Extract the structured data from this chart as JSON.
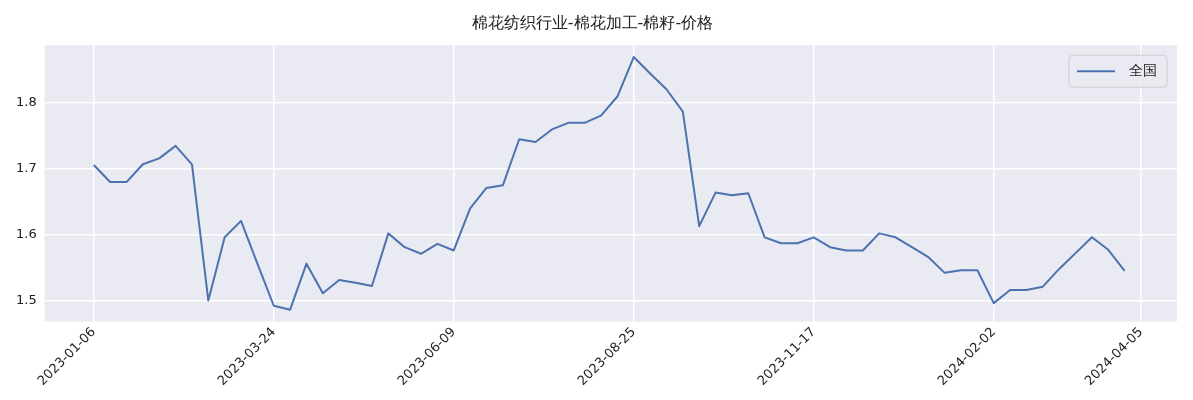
{
  "chart_data": {
    "type": "line",
    "title": "棉花纺织行业-棉花加工-棉籽-价格",
    "categories": [
      "2023-01-06",
      null,
      null,
      null,
      null,
      null,
      null,
      null,
      null,
      null,
      null,
      "2023-03-24",
      null,
      null,
      null,
      null,
      null,
      null,
      null,
      null,
      null,
      null,
      "2023-06-09",
      null,
      null,
      null,
      null,
      null,
      null,
      null,
      null,
      null,
      null,
      "2023-08-25",
      null,
      null,
      null,
      null,
      null,
      null,
      null,
      null,
      null,
      null,
      "2023-11-17",
      null,
      null,
      null,
      null,
      null,
      null,
      null,
      null,
      null,
      null,
      "2024-02-02",
      null,
      null,
      null,
      null,
      null,
      null,
      null,
      null,
      "2024-04-05"
    ],
    "series": [
      {
        "name": "全国",
        "color": "#4c72b0",
        "values": [
          1.706,
          1.68,
          1.68,
          1.707,
          1.716,
          1.735,
          1.707,
          1.5,
          1.596,
          1.621,
          1.556,
          1.492,
          1.486,
          1.556,
          1.511,
          1.531,
          1.527,
          1.522,
          1.602,
          1.581,
          1.571,
          1.586,
          1.576,
          1.64,
          1.671,
          1.675,
          1.745,
          1.741,
          1.76,
          1.77,
          1.77,
          1.781,
          1.81,
          1.87,
          1.845,
          1.821,
          1.787,
          1.613,
          1.664,
          1.66,
          1.663,
          1.596,
          1.587,
          1.587,
          1.596,
          1.581,
          1.576,
          1.576,
          1.602,
          1.596,
          1.581,
          1.566,
          1.542,
          1.546,
          1.546,
          1.496,
          1.516,
          1.516,
          1.521,
          1.548,
          1.572,
          1.596,
          1.577,
          1.545,
          null
        ]
      }
    ],
    "ylim": [
      1.468,
      1.888
    ],
    "yticks": [
      1.5,
      1.6,
      1.7,
      1.8
    ],
    "grid": true,
    "legend": "top right"
  }
}
